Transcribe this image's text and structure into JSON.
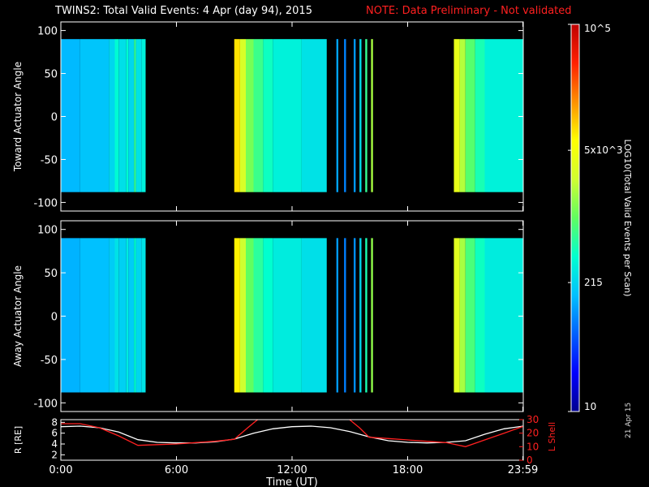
{
  "header": {
    "title": "TWINS2: Total Valid Events:  4 Apr (day  94), 2015",
    "note": "NOTE: Data Preliminary - Not validated"
  },
  "stamp": "21 Apr 15",
  "colorbar": {
    "label": "LOG10(Total Valid Events per Scan)",
    "ticks": [
      {
        "label": "10",
        "value": 10
      },
      {
        "label": "215",
        "value": 215
      },
      {
        "label": "5x10^3",
        "value": 5000
      },
      {
        "label": "10^5",
        "value": 100000
      }
    ],
    "range": [
      10,
      100000
    ],
    "colors": [
      "#00008f",
      "#0000ff",
      "#0060ff",
      "#00c0ff",
      "#00ffd0",
      "#60ff60",
      "#d0ff30",
      "#ffff00",
      "#ff9000",
      "#ff2000",
      "#c00000"
    ]
  },
  "chart_data": [
    {
      "type": "heatmap",
      "panel": "toward",
      "ylabel": "Toward Actuator Angle",
      "ylim": [
        -110,
        110
      ],
      "yticks": [
        100,
        50,
        0,
        -50,
        -100
      ],
      "data_y_range": [
        -88,
        90
      ],
      "xlim": [
        0,
        24
      ],
      "segments": [
        {
          "start": 0.0,
          "end": 1.0,
          "value": 150
        },
        {
          "start": 1.0,
          "end": 2.5,
          "value": 170
        },
        {
          "start": 2.5,
          "end": 2.8,
          "value": 220
        },
        {
          "start": 2.8,
          "end": 3.0,
          "value": 380
        },
        {
          "start": 3.0,
          "end": 3.4,
          "value": 250
        },
        {
          "start": 3.4,
          "end": 3.5,
          "value": 400
        },
        {
          "start": 3.5,
          "end": 3.8,
          "value": 220
        },
        {
          "start": 3.8,
          "end": 3.9,
          "value": 650
        },
        {
          "start": 3.9,
          "end": 4.2,
          "value": 260
        },
        {
          "start": 4.2,
          "end": 4.4,
          "value": 320
        },
        {
          "start": 9.0,
          "end": 9.3,
          "value": 8000
        },
        {
          "start": 9.3,
          "end": 9.6,
          "value": 3000
        },
        {
          "start": 9.6,
          "end": 10.0,
          "value": 1200
        },
        {
          "start": 10.0,
          "end": 10.5,
          "value": 700
        },
        {
          "start": 10.5,
          "end": 11.0,
          "value": 450
        },
        {
          "start": 11.0,
          "end": 12.5,
          "value": 330
        },
        {
          "start": 12.5,
          "end": 13.8,
          "value": 260
        },
        {
          "start": 14.3,
          "end": 14.4,
          "value": 120
        },
        {
          "start": 14.7,
          "end": 14.8,
          "value": 90
        },
        {
          "start": 15.2,
          "end": 15.3,
          "value": 110
        },
        {
          "start": 15.5,
          "end": 15.6,
          "value": 240
        },
        {
          "start": 15.8,
          "end": 15.9,
          "value": 650
        },
        {
          "start": 16.1,
          "end": 16.2,
          "value": 1800
        },
        {
          "start": 20.4,
          "end": 20.7,
          "value": 4000
        },
        {
          "start": 20.7,
          "end": 21.0,
          "value": 2000
        },
        {
          "start": 21.0,
          "end": 21.5,
          "value": 900
        },
        {
          "start": 21.5,
          "end": 22.0,
          "value": 500
        },
        {
          "start": 22.0,
          "end": 24.0,
          "value": 330
        }
      ]
    },
    {
      "type": "heatmap",
      "panel": "away",
      "ylabel": "Away Actuator Angle",
      "ylim": [
        -110,
        110
      ],
      "yticks": [
        100,
        50,
        0,
        -50,
        -100
      ],
      "data_y_range": [
        -88,
        90
      ],
      "xlim": [
        0,
        24
      ],
      "segments": [
        {
          "start": 0.0,
          "end": 1.0,
          "value": 140
        },
        {
          "start": 1.0,
          "end": 2.5,
          "value": 160
        },
        {
          "start": 2.5,
          "end": 2.8,
          "value": 190
        },
        {
          "start": 2.8,
          "end": 3.0,
          "value": 260
        },
        {
          "start": 3.0,
          "end": 3.4,
          "value": 200
        },
        {
          "start": 3.4,
          "end": 3.5,
          "value": 300
        },
        {
          "start": 3.5,
          "end": 3.8,
          "value": 190
        },
        {
          "start": 3.8,
          "end": 3.9,
          "value": 400
        },
        {
          "start": 3.9,
          "end": 4.2,
          "value": 220
        },
        {
          "start": 4.2,
          "end": 4.4,
          "value": 260
        },
        {
          "start": 9.0,
          "end": 9.3,
          "value": 7000
        },
        {
          "start": 9.3,
          "end": 9.6,
          "value": 2500
        },
        {
          "start": 9.6,
          "end": 10.0,
          "value": 1000
        },
        {
          "start": 10.0,
          "end": 10.5,
          "value": 600
        },
        {
          "start": 10.5,
          "end": 11.0,
          "value": 400
        },
        {
          "start": 11.0,
          "end": 12.5,
          "value": 300
        },
        {
          "start": 12.5,
          "end": 13.8,
          "value": 250
        },
        {
          "start": 14.3,
          "end": 14.4,
          "value": 110
        },
        {
          "start": 14.7,
          "end": 14.8,
          "value": 85
        },
        {
          "start": 15.2,
          "end": 15.3,
          "value": 100
        },
        {
          "start": 15.5,
          "end": 15.6,
          "value": 220
        },
        {
          "start": 15.8,
          "end": 15.9,
          "value": 500
        },
        {
          "start": 16.1,
          "end": 16.2,
          "value": 1500
        },
        {
          "start": 20.4,
          "end": 20.7,
          "value": 3500
        },
        {
          "start": 20.7,
          "end": 21.0,
          "value": 1800
        },
        {
          "start": 21.0,
          "end": 21.5,
          "value": 800
        },
        {
          "start": 21.5,
          "end": 22.0,
          "value": 450
        },
        {
          "start": 22.0,
          "end": 24.0,
          "value": 300
        }
      ]
    },
    {
      "type": "line",
      "panel": "orbit",
      "ylabel": "R [RE]",
      "ylabel_right": "L Shell",
      "ylim": [
        1,
        8.5
      ],
      "yticks": [
        2,
        4,
        6,
        8
      ],
      "ylim_right": [
        0,
        30
      ],
      "yticks_right": [
        0,
        10,
        20,
        30
      ],
      "xlim": [
        0,
        24
      ],
      "xticks": [
        {
          "value": 0,
          "label": "0:00"
        },
        {
          "value": 6,
          "label": "6:00"
        },
        {
          "value": 12,
          "label": "12:00"
        },
        {
          "value": 18,
          "label": "18:00"
        },
        {
          "value": 23.98,
          "label": "23:59"
        }
      ],
      "xlabel": "Time (UT)",
      "series": [
        {
          "color": "#ffffff",
          "axis": "left",
          "x": [
            0,
            1,
            2,
            3,
            4,
            5,
            6,
            7,
            8,
            9,
            10,
            11,
            12,
            13,
            14,
            15,
            16,
            17,
            18,
            19,
            20,
            21,
            22,
            23,
            24
          ],
          "y": [
            7.2,
            7.3,
            7.0,
            6.2,
            4.8,
            4.3,
            4.2,
            4.2,
            4.4,
            4.9,
            6.0,
            6.8,
            7.2,
            7.3,
            7.0,
            6.3,
            5.3,
            4.6,
            4.3,
            4.2,
            4.3,
            4.6,
            5.8,
            6.8,
            7.3
          ]
        },
        {
          "color": "#ff2020",
          "axis": "right",
          "x": [
            0,
            1,
            2,
            3,
            4,
            5,
            6,
            7,
            8,
            9,
            9.7,
            10.3,
            14.9,
            15.5,
            16,
            17,
            18,
            19,
            20,
            21,
            22,
            23,
            24
          ],
          "y": [
            27,
            27,
            24,
            18,
            11,
            11.5,
            12,
            13,
            14,
            15.5,
            24,
            31,
            31,
            24,
            17,
            16,
            15,
            14,
            13,
            10,
            15,
            20,
            25
          ]
        }
      ]
    }
  ]
}
